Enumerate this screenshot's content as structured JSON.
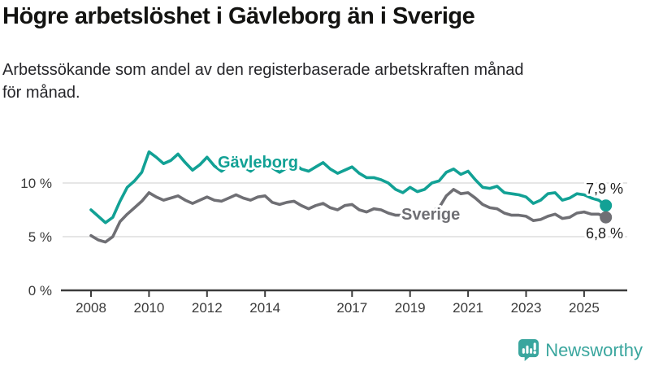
{
  "header": {
    "title": "Högre arbetslöshet i Gävleborg än i Sverige",
    "subtitle_lines": [
      "Arbetssökande som andel av den registerbaserade arbetskraften månad",
      "för månad."
    ]
  },
  "footer": {
    "brand": "Newsworthy",
    "brand_color": "#3aa69e",
    "logo_icon": "bar-chart-speech-bubble-icon"
  },
  "chart_data": {
    "type": "line",
    "unit": "%",
    "grid": "horizontal-only",
    "legend_position": "inline-labels-on-lines",
    "x_range": [
      2008,
      2025.75
    ],
    "ylim": [
      0,
      13.5
    ],
    "x_ticks": [
      2008,
      2010,
      2012,
      2014,
      2017,
      2019,
      2021,
      2023,
      2025
    ],
    "y_ticks": [
      {
        "value": 0,
        "label": "0 %"
      },
      {
        "value": 5,
        "label": "5 %"
      },
      {
        "value": 10,
        "label": "10 %"
      }
    ],
    "x_start": 2008,
    "x_step": 0.25,
    "series": [
      {
        "name": "Gävleborg",
        "color": "#12a195",
        "end_label": "7,9 %",
        "end_value": 7.9,
        "values": [
          7.5,
          6.9,
          6.3,
          6.8,
          8.3,
          9.6,
          10.2,
          11.0,
          12.9,
          12.4,
          11.8,
          12.1,
          12.7,
          11.9,
          11.2,
          11.7,
          12.4,
          11.6,
          11.1,
          11.6,
          12.1,
          11.5,
          11.1,
          11.6,
          12.0,
          11.4,
          11.0,
          11.4,
          11.8,
          11.3,
          11.1,
          11.5,
          11.9,
          11.3,
          10.9,
          11.2,
          11.5,
          10.9,
          10.5,
          10.5,
          10.3,
          10.0,
          9.4,
          9.1,
          9.6,
          9.2,
          9.4,
          10.0,
          10.2,
          11.0,
          11.3,
          10.8,
          11.1,
          10.3,
          9.6,
          9.5,
          9.7,
          9.1,
          9.0,
          8.9,
          8.7,
          8.1,
          8.4,
          9.0,
          9.1,
          8.4,
          8.6,
          9.0,
          8.9,
          8.6,
          8.4,
          7.9
        ]
      },
      {
        "name": "Sverige",
        "color": "#6f6f74",
        "end_label": "6,8 %",
        "end_value": 6.8,
        "values": [
          5.1,
          4.7,
          4.5,
          5.0,
          6.4,
          7.1,
          7.7,
          8.3,
          9.1,
          8.7,
          8.4,
          8.6,
          8.8,
          8.4,
          8.1,
          8.4,
          8.7,
          8.4,
          8.3,
          8.6,
          8.9,
          8.6,
          8.4,
          8.7,
          8.8,
          8.2,
          8.0,
          8.2,
          8.3,
          7.9,
          7.6,
          7.9,
          8.1,
          7.7,
          7.5,
          7.9,
          8.0,
          7.5,
          7.3,
          7.6,
          7.5,
          7.2,
          7.0,
          7.0,
          7.1,
          7.0,
          7.0,
          7.4,
          7.7,
          8.8,
          9.4,
          9.0,
          9.1,
          8.6,
          8.0,
          7.7,
          7.6,
          7.2,
          7.0,
          7.0,
          6.9,
          6.5,
          6.6,
          6.9,
          7.1,
          6.7,
          6.8,
          7.2,
          7.3,
          7.1,
          7.1,
          6.8
        ]
      }
    ]
  }
}
